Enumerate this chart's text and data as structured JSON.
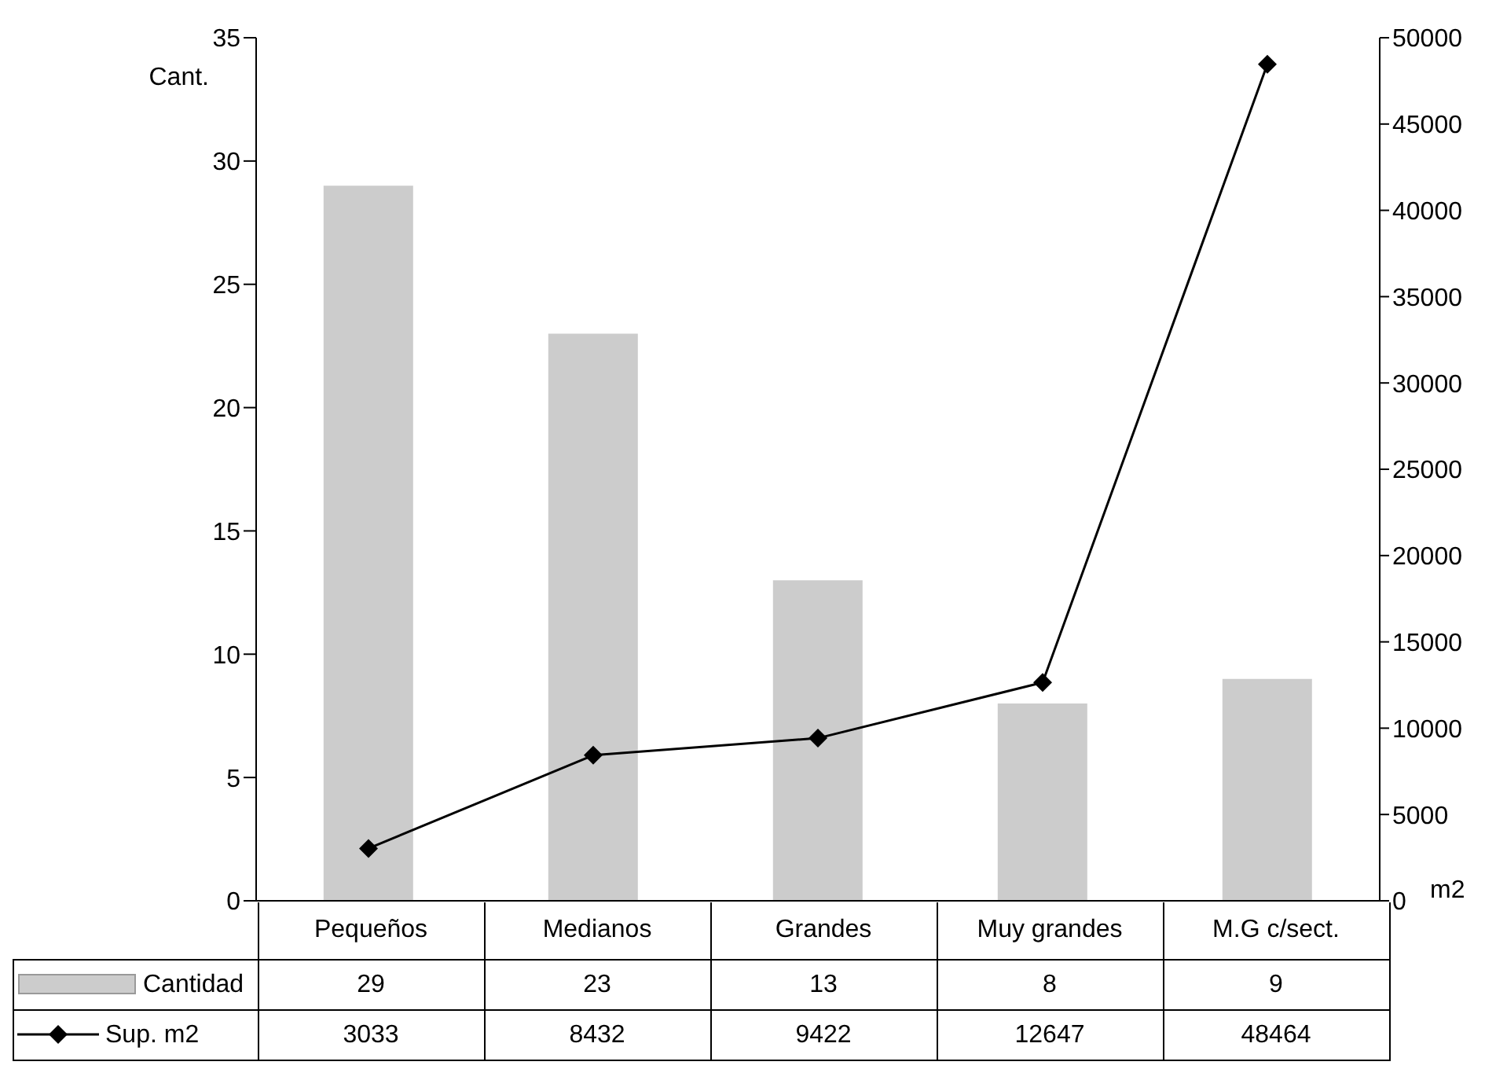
{
  "chart_data": {
    "type": "bar",
    "ylabel": "Cant.",
    "y2label": "m2",
    "categories": [
      "Pequeños",
      "Medianos",
      "Grandes",
      "Muy grandes",
      "M.G  c/sect."
    ],
    "series": [
      {
        "name": "Cantidad",
        "color": "#cccccc",
        "values": [
          29,
          23,
          13,
          8,
          9
        ]
      },
      {
        "name": "Sup. m2",
        "type": "line",
        "axis": "y2",
        "color": "#000000",
        "marker": "diamond",
        "values": [
          3033,
          8432,
          9422,
          12647,
          48464
        ]
      }
    ],
    "ylim": [
      0,
      35
    ],
    "yticks": [
      0,
      5,
      10,
      15,
      20,
      25,
      30,
      35
    ],
    "y2lim": [
      0,
      50000
    ],
    "y2ticks": [
      0,
      5000,
      10000,
      15000,
      20000,
      25000,
      30000,
      35000,
      40000,
      45000,
      50000
    ],
    "grid": false,
    "legend": "bottom",
    "data_labels": true
  }
}
